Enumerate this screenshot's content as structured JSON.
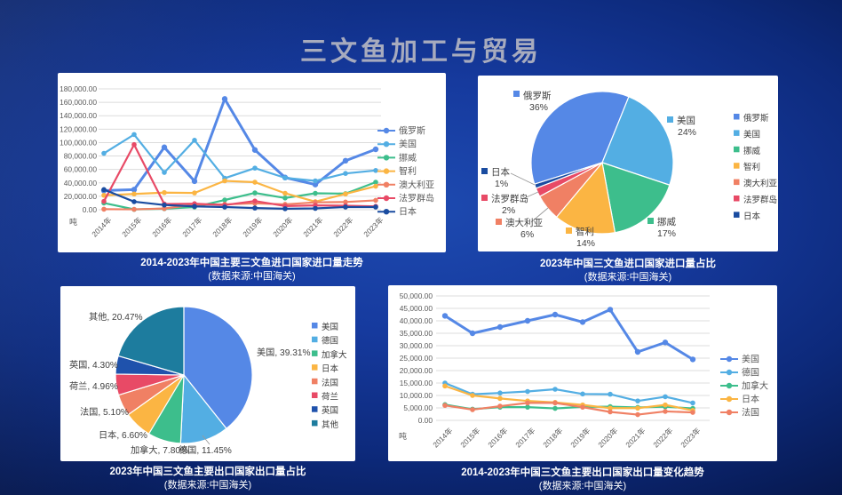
{
  "title": "三文鱼加工与贸易",
  "palette": {
    "blue": "#5588E6",
    "sky": "#53AEE3",
    "green": "#3DBE8C",
    "amber": "#FBB543",
    "salmon": "#F08064",
    "rose": "#E84A66",
    "navy": "#1A4CA0",
    "navy2": "#1F52AC",
    "teal": "#1D7C9E"
  },
  "chart_data": [
    {
      "id": "import-trend",
      "type": "line",
      "title": "2014-2023年中国主要三文鱼进口国家进口量走势",
      "subtitle": "(数据来源:中国海关)",
      "unit": "吨",
      "ylim": [
        0,
        180000
      ],
      "ytick": 20000,
      "grid": true,
      "legend_position": "right",
      "categories": [
        "2014年",
        "2015年",
        "2016年",
        "2017年",
        "2018年",
        "2019年",
        "2020年",
        "2021年",
        "2022年",
        "2023年"
      ],
      "series": [
        {
          "name": "俄罗斯",
          "color": "#5588E6",
          "width": 3,
          "values": [
            28500,
            30000,
            93000,
            42500,
            165000,
            89000,
            48000,
            37500,
            73000,
            90000
          ]
        },
        {
          "name": "美国",
          "color": "#53AEE3",
          "values": [
            84000,
            112000,
            55500,
            103500,
            47000,
            62000,
            47500,
            43000,
            54000,
            58500
          ]
        },
        {
          "name": "挪威",
          "color": "#3DBE8C",
          "values": [
            10000,
            500,
            1500,
            4000,
            14500,
            25000,
            17500,
            24500,
            24000,
            41000
          ]
        },
        {
          "name": "智利",
          "color": "#FBB543",
          "values": [
            21500,
            23500,
            25500,
            25000,
            43000,
            41000,
            24500,
            12000,
            23500,
            35000
          ]
        },
        {
          "name": "澳大利亚",
          "color": "#F08064",
          "values": [
            800,
            600,
            1800,
            7500,
            8000,
            9500,
            8000,
            11000,
            11500,
            14000
          ]
        },
        {
          "name": "法罗群岛",
          "color": "#E84A66",
          "values": [
            12500,
            97000,
            8500,
            9000,
            7000,
            13000,
            5500,
            6500,
            6000,
            5000
          ]
        },
        {
          "name": "日本",
          "color": "#1A4CA0",
          "values": [
            30000,
            12000,
            7000,
            5000,
            4000,
            2500,
            1500,
            2000,
            4000,
            4000
          ]
        }
      ]
    },
    {
      "id": "import-share",
      "type": "pie",
      "title": "2023年中国三文鱼进口国家进口量占比",
      "subtitle": "(数据来源:中国海关)",
      "start_angle": -107.6,
      "legend_position": "right",
      "slices": [
        {
          "name": "俄罗斯",
          "pct": 36,
          "pct_label": "36%",
          "color": "#5588E6"
        },
        {
          "name": "美国",
          "pct": 24,
          "pct_label": "24%",
          "color": "#53AEE3"
        },
        {
          "name": "挪威",
          "pct": 17,
          "pct_label": "17%",
          "color": "#3DBE8C"
        },
        {
          "name": "智利",
          "pct": 14,
          "pct_label": "14%",
          "color": "#FBB543"
        },
        {
          "name": "澳大利亚",
          "pct": 6,
          "pct_label": "6%",
          "color": "#F08064"
        },
        {
          "name": "法罗群岛",
          "pct": 2,
          "pct_label": "2%",
          "color": "#E84A66"
        },
        {
          "name": "日本",
          "pct": 1,
          "pct_label": "1%",
          "color": "#1A4CA0"
        }
      ]
    },
    {
      "id": "export-share",
      "type": "pie",
      "title": "2023年中国三文鱼主要出口国家出口量占比",
      "subtitle": "(数据来源:中国海关)",
      "start_angle": 0,
      "legend_position": "right",
      "slices": [
        {
          "name": "美国",
          "pct": 39.31,
          "label": "美国, 39.31%",
          "color": "#5588E6"
        },
        {
          "name": "德国",
          "pct": 11.45,
          "label": "德国, 11.45%",
          "color": "#53AEE3"
        },
        {
          "name": "加拿大",
          "pct": 7.8,
          "label": "加拿大, 7.80%",
          "color": "#3DBE8C"
        },
        {
          "name": "日本",
          "pct": 6.6,
          "label": "日本, 6.60%",
          "color": "#FBB543"
        },
        {
          "name": "法国",
          "pct": 5.1,
          "label": "法国, 5.10%",
          "color": "#F08064"
        },
        {
          "name": "荷兰",
          "pct": 4.96,
          "label": "荷兰, 4.96%",
          "color": "#E84A66"
        },
        {
          "name": "英国",
          "pct": 4.3,
          "label": "英国, 4.30%",
          "color": "#1F52AC"
        },
        {
          "name": "其他",
          "pct": 20.47,
          "label": "其他, 20.47%",
          "color": "#1D7C9E"
        }
      ]
    },
    {
      "id": "export-trend",
      "type": "line",
      "title": "2014-2023年中国三文鱼主要出口国家出口量变化趋势",
      "subtitle": "(数据来源:中国海关)",
      "unit": "吨",
      "ylim": [
        0,
        50000
      ],
      "ytick": 5000,
      "grid": true,
      "legend_position": "right",
      "categories": [
        "2014年",
        "2015年",
        "2016年",
        "2017年",
        "2018年",
        "2019年",
        "2020年",
        "2021年",
        "2022年",
        "2023年"
      ],
      "series": [
        {
          "name": "美国",
          "color": "#5588E6",
          "width": 3,
          "values": [
            42000,
            35000,
            37500,
            40000,
            42500,
            39500,
            44500,
            27500,
            31300,
            24500
          ]
        },
        {
          "name": "德国",
          "color": "#53AEE3",
          "values": [
            15000,
            10500,
            11000,
            11600,
            12500,
            10600,
            10500,
            7800,
            9500,
            7000
          ]
        },
        {
          "name": "加拿大",
          "color": "#3DBE8C",
          "values": [
            6300,
            4500,
            5300,
            5300,
            4800,
            5400,
            5500,
            5200,
            5500,
            4800
          ]
        },
        {
          "name": "日本",
          "color": "#FBB543",
          "values": [
            13800,
            10000,
            8800,
            7800,
            7200,
            6200,
            4900,
            4900,
            6200,
            4000
          ]
        },
        {
          "name": "法国",
          "color": "#F08064",
          "values": [
            6000,
            4300,
            5700,
            7000,
            7000,
            5300,
            3400,
            2300,
            3600,
            3200
          ]
        }
      ]
    }
  ]
}
